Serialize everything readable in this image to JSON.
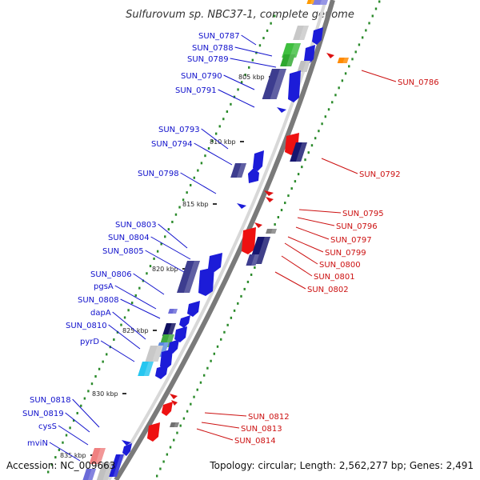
{
  "title": "Sulfurovum sp. NBC37-1, complete genome",
  "footer": {
    "accession": "Accession: NC_009663",
    "topology": "Topology: circular; Length: 2,562,277 bp; Genes: 2,491"
  },
  "colors": {
    "left_label": "#1010cc",
    "right_label": "#cc1010",
    "backbone": "#7a7a7a",
    "tick_dots": "#2a8a2a"
  },
  "kbp_marks": [
    "805 kbp",
    "810 kbp",
    "815 kbp",
    "820 kbp",
    "825 kbp",
    "830 kbp",
    "835 kbp"
  ],
  "left_genes": [
    "SUN_0787",
    "SUN_0788",
    "SUN_0789",
    "SUN_0790",
    "SUN_0791",
    "SUN_0793",
    "SUN_0794",
    "SUN_0798",
    "SUN_0803",
    "SUN_0804",
    "SUN_0805",
    "SUN_0806",
    "pgsA",
    "SUN_0808",
    "dapA",
    "SUN_0810",
    "pyrD",
    "SUN_0818",
    "SUN_0819",
    "cysS",
    "mviN"
  ],
  "right_genes": [
    "SUN_0786",
    "SUN_0792",
    "SUN_0795",
    "SUN_0796",
    "SUN_0797",
    "SUN_0799",
    "SUN_0800",
    "SUN_0801",
    "SUN_0802",
    "SUN_0812",
    "SUN_0813",
    "SUN_0814"
  ]
}
